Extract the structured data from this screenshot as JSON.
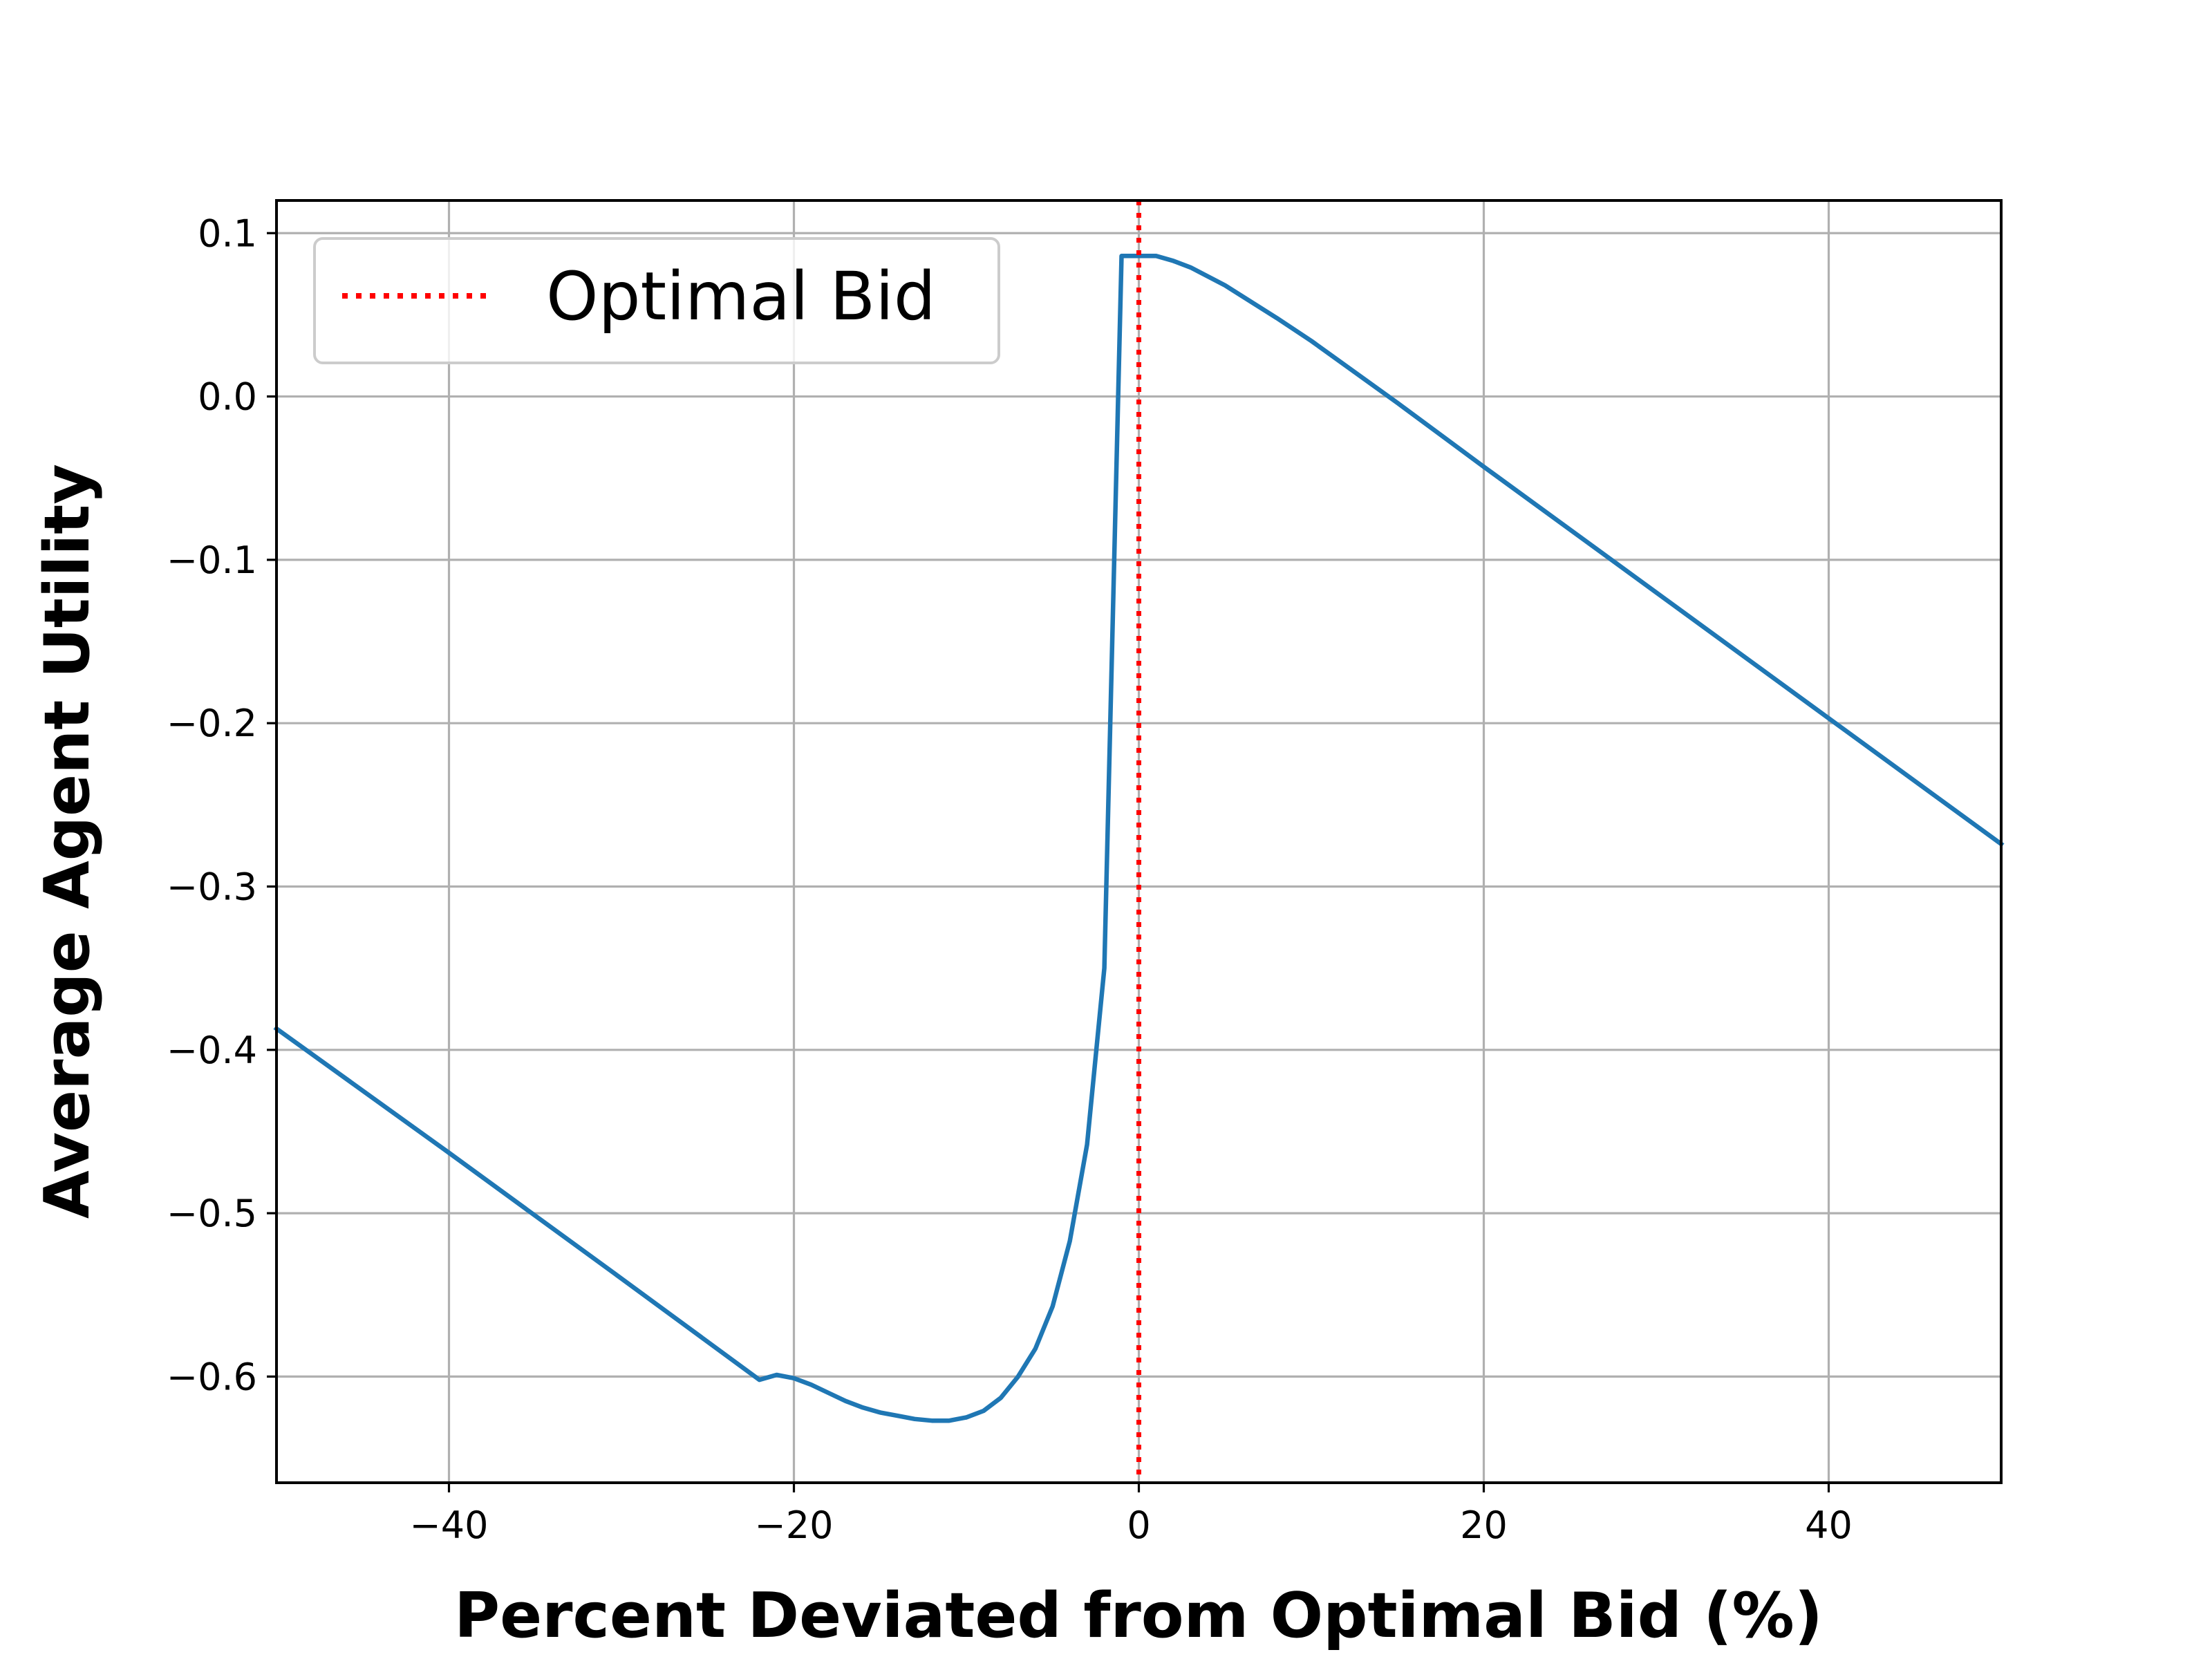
{
  "chart_data": {
    "type": "line",
    "title": "",
    "xlabel": "Percent Deviated from Optimal Bid (%)",
    "ylabel": "Average Agent Utility",
    "xlim": [
      -50,
      50
    ],
    "ylim": [
      -0.665,
      0.12
    ],
    "xticks": [
      -40,
      -20,
      0,
      20,
      40
    ],
    "xtick_labels": [
      "−40",
      "−20",
      "0",
      "20",
      "40"
    ],
    "yticks": [
      0.1,
      0.0,
      -0.1,
      -0.2,
      -0.3,
      -0.4,
      -0.5,
      -0.6
    ],
    "ytick_labels": [
      "0.1",
      "0.0",
      "−0.1",
      "−0.2",
      "−0.3",
      "−0.4",
      "−0.5",
      "−0.6"
    ],
    "grid": true,
    "legend_position": "upper-left",
    "series": [
      {
        "name": "",
        "color": "#1f77b4",
        "x": [
          -50,
          -40,
          -30,
          -22,
          -21,
          -20,
          -19,
          -18,
          -17,
          -16,
          -15,
          -14,
          -13,
          -12,
          -11,
          -10,
          -9,
          -8,
          -7,
          -6,
          -5,
          -4,
          -3,
          -2,
          -1,
          -0.5,
          0,
          1,
          2,
          3,
          5,
          8,
          10,
          15,
          20,
          30,
          40,
          50
        ],
        "y": [
          -0.387,
          -0.463,
          -0.54,
          -0.602,
          -0.599,
          -0.601,
          -0.605,
          -0.61,
          -0.615,
          -0.619,
          -0.622,
          -0.624,
          -0.626,
          -0.627,
          -0.627,
          -0.625,
          -0.621,
          -0.613,
          -0.6,
          -0.583,
          -0.557,
          -0.517,
          -0.458,
          -0.35,
          0.086,
          0.086,
          0.086,
          0.086,
          0.083,
          0.079,
          0.068,
          0.048,
          0.034,
          -0.004,
          -0.043,
          -0.12,
          -0.197,
          -0.274
        ]
      }
    ],
    "reference_lines": [
      {
        "name": "Optimal Bid",
        "x": 0,
        "color": "#ff0000",
        "style": "dotted"
      }
    ],
    "legend": [
      {
        "label": "Optimal Bid",
        "color": "#ff0000",
        "style": "dotted"
      }
    ]
  }
}
